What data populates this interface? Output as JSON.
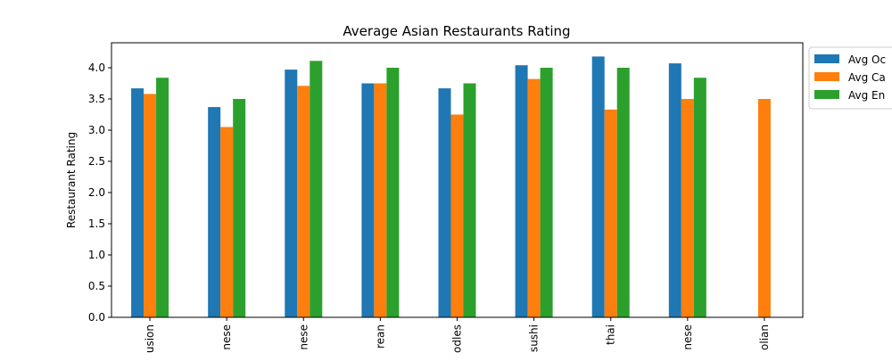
{
  "chart_data": {
    "type": "bar",
    "title": "Average Asian Restaurants Rating",
    "xlabel": "",
    "ylabel": "Restaurant Rating",
    "ylim": [
      0,
      4.4
    ],
    "yticks": [
      "0.0",
      "0.5",
      "1.0",
      "1.5",
      "2.0",
      "2.5",
      "3.0",
      "3.5",
      "4.0"
    ],
    "categories": [
      "usion",
      "nese",
      "nese",
      "rean",
      "odles",
      "sushi",
      "thai",
      "nese",
      "olian"
    ],
    "series": [
      {
        "name": "Avg Oc",
        "color": "#1f77b4",
        "values": [
          3.67,
          3.37,
          3.97,
          3.75,
          3.67,
          4.04,
          4.18,
          4.07,
          null
        ]
      },
      {
        "name": "Avg Ca",
        "color": "#ff7f0e",
        "values": [
          3.58,
          3.05,
          3.71,
          3.75,
          3.25,
          3.82,
          3.33,
          3.5,
          3.5
        ]
      },
      {
        "name": "Avg En",
        "color": "#2ca02c",
        "values": [
          3.84,
          3.5,
          4.11,
          4.0,
          3.75,
          4.0,
          4.0,
          3.84,
          null
        ]
      }
    ],
    "grid": false,
    "legend_position": "outside-right-top"
  }
}
